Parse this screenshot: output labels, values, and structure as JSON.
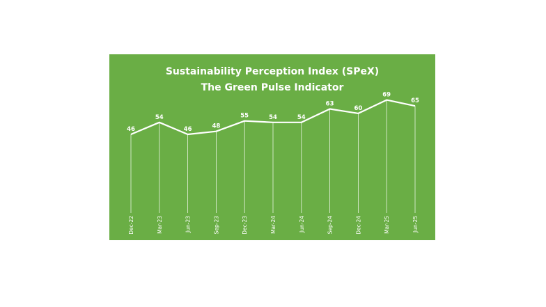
{
  "chart_data": {
    "type": "line",
    "title": "Sustainability Perception Index (SPeX)",
    "subtitle": "The Green Pulse Indicator",
    "categories": [
      "Dec-22",
      "Mar-23",
      "Jun-23",
      "Sep-23",
      "Dec-23",
      "Mar-24",
      "Jun-24",
      "Sep-24",
      "Dec-24",
      "Mar-25",
      "Jun-25"
    ],
    "series": [
      {
        "values": [
          46,
          54,
          46,
          48,
          55,
          54,
          54,
          63,
          60,
          69,
          65
        ]
      }
    ],
    "data_labels": true,
    "legend": "none",
    "grid": false,
    "drop_lines": true,
    "x_tick_rotation": -90
  },
  "colors": {
    "background": "#6aae45",
    "line": "#ffffff",
    "text": "#ffffff"
  }
}
